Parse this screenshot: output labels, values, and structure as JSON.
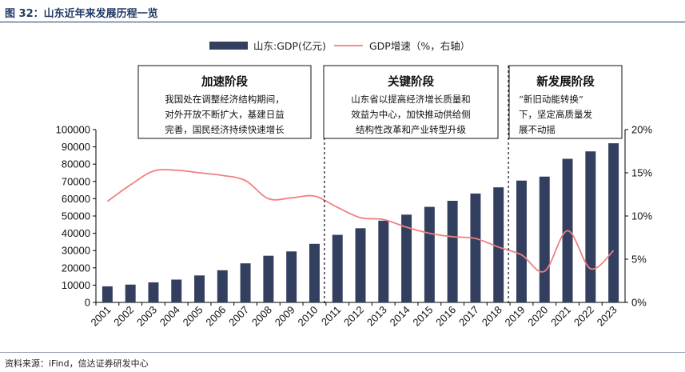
{
  "figure_title": "图 32：山东近年来发展历程一览",
  "source": "资料来源：iFind，信达证券研发中心",
  "colors": {
    "bar": "#333f5e",
    "line": "#f08080",
    "title": "#1f3a68"
  },
  "chart_data": {
    "type": "bar",
    "categories": [
      "2001",
      "2002",
      "2003",
      "2004",
      "2005",
      "2006",
      "2007",
      "2008",
      "2009",
      "2010",
      "2011",
      "2012",
      "2013",
      "2014",
      "2015",
      "2016",
      "2017",
      "2018",
      "2019",
      "2020",
      "2021",
      "2022",
      "2023"
    ],
    "series": [
      {
        "name": "山东:GDP(亿元)",
        "type": "bar",
        "axis": "left",
        "values": [
          9300,
          10300,
          11600,
          13200,
          15600,
          18600,
          22600,
          27000,
          29500,
          33900,
          39100,
          42900,
          47300,
          50800,
          55300,
          58800,
          63000,
          66600,
          70500,
          72800,
          83100,
          87400,
          92100
        ]
      },
      {
        "name": "GDP增速（%，右轴）",
        "type": "line",
        "axis": "right",
        "values": [
          11.7,
          13.6,
          15.2,
          15.3,
          15.0,
          14.7,
          14.1,
          12.0,
          12.1,
          12.3,
          11.0,
          9.8,
          9.6,
          8.7,
          8.0,
          7.6,
          7.4,
          6.4,
          5.5,
          3.6,
          8.3,
          3.9,
          6.0
        ]
      }
    ],
    "ylim_left": [
      0,
      100000
    ],
    "yticks_left": [
      "0",
      "10000",
      "20000",
      "30000",
      "40000",
      "50000",
      "60000",
      "70000",
      "80000",
      "90000",
      "100000"
    ],
    "ylim_right": [
      0,
      20
    ],
    "yticks_right": [
      "0%",
      "5%",
      "10%",
      "15%",
      "20%"
    ],
    "legend_position": "top-center",
    "grid": false,
    "dividers_after": [
      "2010",
      "2018"
    ],
    "annotations": [
      {
        "title": "加速阶段",
        "lines": [
          "我国处在调整经济结构期间，",
          "对外开放不断扩大，基建日益",
          "完善，国民经济持续快速增长"
        ]
      },
      {
        "title": "关键阶段",
        "lines": [
          "山东省以提高经济增长质量和",
          "效益为中心，加快推动供给侧",
          "结构性改革和产业转型升级"
        ]
      },
      {
        "title": "新发展阶段",
        "lines": [
          "“新旧动能转换”",
          "下，坚定高质量发",
          "展不动摇"
        ]
      }
    ]
  }
}
